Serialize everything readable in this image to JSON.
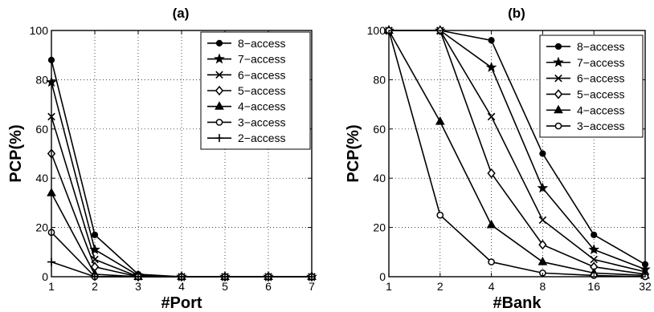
{
  "chart_data": [
    {
      "type": "line",
      "title": "(a)",
      "xlabel": "#Port",
      "ylabel": "PCP(%)",
      "x_categories": [
        "1",
        "2",
        "3",
        "4",
        "5",
        "6",
        "7"
      ],
      "ylim": [
        0,
        100
      ],
      "yticks": [
        "0",
        "20",
        "40",
        "60",
        "80",
        "100"
      ],
      "grid": true,
      "legend_position": "top-right",
      "series": [
        {
          "name": "8−access",
          "marker": "circle",
          "values": [
            88,
            17,
            1,
            0,
            0,
            0,
            0
          ]
        },
        {
          "name": "7−access",
          "marker": "star",
          "values": [
            79,
            11,
            0.5,
            0,
            0,
            0,
            0
          ]
        },
        {
          "name": "6−access",
          "marker": "x",
          "values": [
            65,
            7,
            0,
            0,
            0,
            0,
            0
          ]
        },
        {
          "name": "5−access",
          "marker": "diamond",
          "values": [
            50,
            4,
            0,
            0,
            0,
            0,
            0
          ]
        },
        {
          "name": "4−access",
          "marker": "triangle",
          "values": [
            34,
            1,
            0,
            0,
            0,
            0,
            0
          ]
        },
        {
          "name": "3−access",
          "marker": "circle-open",
          "values": [
            18,
            0,
            0,
            0,
            0,
            0,
            0
          ]
        },
        {
          "name": "2−access",
          "marker": "plus",
          "values": [
            6,
            0,
            0,
            0,
            0,
            0,
            0
          ]
        }
      ]
    },
    {
      "type": "line",
      "title": "(b)",
      "xlabel": "#Bank",
      "ylabel": "PCP(%)",
      "x_categories": [
        "1",
        "2",
        "4",
        "8",
        "16",
        "32"
      ],
      "ylim": [
        0,
        100
      ],
      "yticks": [
        "0",
        "20",
        "40",
        "60",
        "80",
        "100"
      ],
      "grid": true,
      "legend_position": "top-right",
      "series": [
        {
          "name": "8−access",
          "marker": "circle",
          "values": [
            100,
            100,
            96,
            50,
            17,
            5
          ]
        },
        {
          "name": "7−access",
          "marker": "star",
          "values": [
            100,
            100,
            85,
            36,
            11,
            3
          ]
        },
        {
          "name": "6−access",
          "marker": "x",
          "values": [
            100,
            100,
            65,
            23,
            7,
            2
          ]
        },
        {
          "name": "5−access",
          "marker": "diamond",
          "values": [
            100,
            100,
            42,
            13,
            4,
            1
          ]
        },
        {
          "name": "4−access",
          "marker": "triangle",
          "values": [
            100,
            63,
            21,
            6,
            1.5,
            0.5
          ]
        },
        {
          "name": "3−access",
          "marker": "circle-open",
          "values": [
            100,
            25,
            6,
            1.5,
            0.5,
            0
          ]
        }
      ]
    }
  ]
}
